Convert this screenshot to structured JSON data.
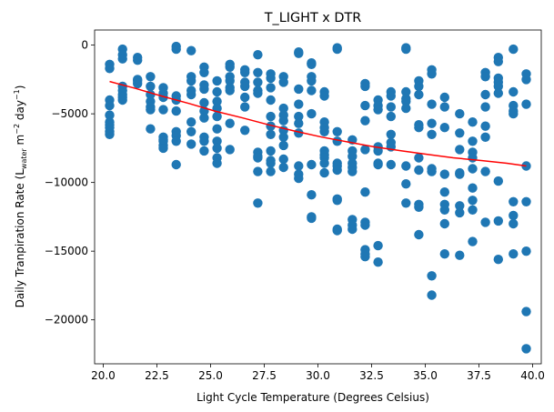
{
  "chart_data": {
    "type": "scatter",
    "title": "T_LIGHT x DTR",
    "xlabel": "Light Cycle Temperature (Degrees Celsius)",
    "ylabel_parts": [
      "Daily Tranpiration Rate (L",
      "water",
      " m",
      "−2",
      " day",
      "−1",
      ")"
    ],
    "xlim": [
      19.6,
      40.4
    ],
    "ylim": [
      -23200,
      1100
    ],
    "xticks": [
      20.0,
      22.5,
      25.0,
      27.5,
      30.0,
      32.5,
      35.0,
      37.5,
      40.0
    ],
    "xtick_labels": [
      "20.0",
      "22.5",
      "25.0",
      "27.5",
      "30.0",
      "32.5",
      "35.0",
      "37.5",
      "40.0"
    ],
    "yticks": [
      0,
      -5000,
      -10000,
      -15000,
      -20000
    ],
    "ytick_labels": [
      "0",
      "−5000",
      "−10000",
      "−15000",
      "−20000"
    ],
    "grid": false,
    "colors": {
      "points": "#1f77b4",
      "trend": "#ff0000"
    },
    "series": [
      {
        "kind": "scatter",
        "x": [
          20.3,
          20.3,
          20.3,
          20.3,
          20.3,
          20.3,
          20.3,
          20.3,
          20.3,
          20.3,
          20.9,
          20.9,
          20.9,
          20.9,
          20.9,
          20.9,
          20.9,
          20.9,
          21.6,
          21.6,
          21.6,
          21.6,
          21.6,
          22.2,
          22.2,
          22.2,
          22.2,
          22.2,
          22.2,
          22.2,
          22.8,
          22.8,
          22.8,
          22.8,
          22.8,
          22.8,
          22.8,
          22.8,
          22.8,
          23.4,
          23.4,
          23.4,
          23.4,
          23.4,
          23.4,
          23.4,
          23.4,
          23.4,
          24.1,
          24.1,
          24.1,
          24.1,
          24.1,
          24.1,
          24.1,
          24.1,
          24.7,
          24.7,
          24.7,
          24.7,
          24.7,
          24.7,
          24.7,
          24.7,
          24.7,
          24.7,
          25.3,
          25.3,
          25.3,
          25.3,
          25.3,
          25.3,
          25.3,
          25.3,
          25.3,
          25.3,
          25.9,
          25.9,
          25.9,
          25.9,
          25.9,
          25.9,
          25.9,
          25.9,
          26.6,
          26.6,
          26.6,
          26.6,
          26.6,
          26.6,
          26.6,
          27.2,
          27.2,
          27.2,
          27.2,
          27.2,
          27.2,
          27.2,
          27.2,
          27.2,
          27.2,
          27.8,
          27.8,
          27.8,
          27.8,
          27.8,
          27.8,
          27.8,
          27.8,
          27.8,
          27.8,
          27.8,
          28.4,
          28.4,
          28.4,
          28.4,
          28.4,
          28.4,
          28.4,
          28.4,
          28.4,
          28.4,
          29.1,
          29.1,
          29.1,
          29.1,
          29.1,
          29.1,
          29.1,
          29.1,
          29.1,
          29.1,
          29.7,
          29.7,
          29.7,
          29.7,
          29.7,
          29.7,
          29.7,
          29.7,
          29.7,
          29.7,
          30.3,
          30.3,
          30.3,
          30.3,
          30.3,
          30.3,
          30.3,
          30.3,
          30.3,
          30.3,
          30.9,
          30.9,
          30.9,
          30.9,
          30.9,
          30.9,
          30.9,
          30.9,
          30.9,
          30.9,
          30.9,
          31.6,
          31.6,
          31.6,
          31.6,
          31.6,
          31.6,
          31.6,
          31.6,
          31.6,
          32.2,
          32.2,
          32.2,
          32.2,
          32.2,
          32.2,
          32.2,
          32.2,
          32.2,
          32.2,
          32.2,
          32.8,
          32.8,
          32.8,
          32.8,
          32.8,
          32.8,
          32.8,
          32.8,
          32.8,
          33.4,
          33.4,
          33.4,
          33.4,
          33.4,
          33.4,
          33.4,
          33.4,
          34.1,
          34.1,
          34.1,
          34.1,
          34.1,
          34.1,
          34.1,
          34.1,
          34.1,
          34.7,
          34.7,
          34.7,
          34.7,
          34.7,
          34.7,
          34.7,
          34.7,
          34.7,
          34.7,
          35.3,
          35.3,
          35.3,
          35.3,
          35.3,
          35.3,
          35.3,
          35.3,
          35.3,
          35.9,
          35.9,
          35.9,
          35.9,
          35.9,
          35.9,
          35.9,
          35.9,
          35.9,
          36.6,
          36.6,
          36.6,
          36.6,
          36.6,
          36.6,
          36.6,
          36.6,
          37.2,
          37.2,
          37.2,
          37.2,
          37.2,
          37.2,
          37.2,
          37.2,
          37.2,
          37.8,
          37.8,
          37.8,
          37.8,
          37.8,
          37.8,
          37.8,
          37.8,
          38.4,
          38.4,
          38.4,
          38.4,
          38.4,
          38.4,
          38.4,
          38.4,
          38.4,
          39.1,
          39.1,
          39.1,
          39.1,
          39.1,
          39.1,
          39.1,
          39.1,
          39.1,
          39.7,
          39.7,
          39.7,
          39.7,
          39.7,
          39.7,
          39.7,
          39.7
        ],
        "y": [
          -1400,
          -1700,
          -4000,
          -4400,
          -5100,
          -5600,
          -5800,
          -6300,
          -6500,
          -6000,
          -300,
          -700,
          -1000,
          -3300,
          -3600,
          -4000,
          -3000,
          -3800,
          -900,
          -1100,
          -2600,
          -2800,
          -2500,
          -2300,
          -3000,
          -4100,
          -4500,
          -4700,
          -6100,
          -3600,
          -3100,
          -3500,
          -3800,
          -6700,
          -7000,
          -7300,
          -7500,
          -6900,
          -4700,
          -100,
          -300,
          -3700,
          -4000,
          -4800,
          -6300,
          -6600,
          -8700,
          -7000,
          -400,
          -2300,
          -2600,
          -3300,
          -3600,
          -5600,
          -6300,
          -7200,
          -1600,
          -2000,
          -2900,
          -3200,
          -4800,
          -5300,
          -6700,
          -7000,
          -7700,
          -4200,
          -2600,
          -3400,
          -4100,
          -4600,
          -5200,
          -6100,
          -7000,
          -7500,
          -8200,
          -8600,
          -1400,
          -1600,
          -2300,
          -2600,
          -3100,
          -3300,
          -5700,
          -7600,
          -1800,
          -2000,
          -2700,
          -3000,
          -3800,
          -4500,
          -6200,
          -700,
          -2000,
          -2700,
          -3300,
          -3500,
          -7800,
          -8100,
          -8200,
          -9200,
          -11500,
          -2100,
          -2400,
          -3100,
          -4000,
          -5200,
          -5900,
          -6500,
          -7700,
          -8400,
          -8600,
          -9200,
          -2300,
          -2700,
          -4600,
          -5100,
          -5500,
          -6200,
          -6700,
          -7300,
          -8300,
          -8900,
          -600,
          -500,
          -3200,
          -4300,
          -5200,
          -5700,
          -6400,
          -8800,
          -9400,
          -9700,
          -1300,
          -1400,
          -2300,
          -2600,
          -3300,
          -5000,
          -8700,
          -10900,
          -12500,
          -12600,
          -3400,
          -3700,
          -5600,
          -6000,
          -6300,
          -7700,
          -8000,
          -8200,
          -8600,
          -9300,
          -200,
          -300,
          -6300,
          -7000,
          -8600,
          -8800,
          -9100,
          -11200,
          -11300,
          -13400,
          -13500,
          -6900,
          -7700,
          -8100,
          -8600,
          -8900,
          -9200,
          -12700,
          -13100,
          -13400,
          -2800,
          -3000,
          -4400,
          -5500,
          -7600,
          -10700,
          -12900,
          -13100,
          -14900,
          -15200,
          -15400,
          -4000,
          -4400,
          -4700,
          -7400,
          -7700,
          -8600,
          -8700,
          -14600,
          -15800,
          -3400,
          -3700,
          -4500,
          -5200,
          -6500,
          -7100,
          -7400,
          -8700,
          -200,
          -300,
          -3400,
          -3900,
          -4100,
          -4600,
          -8800,
          -10100,
          -11500,
          -2600,
          -3000,
          -3600,
          -5800,
          -6000,
          -8200,
          -9100,
          -11600,
          -11800,
          -13800,
          -1800,
          -2100,
          -4300,
          -5700,
          -6500,
          -9000,
          -9200,
          -16800,
          -18200,
          -3800,
          -4500,
          -6000,
          -9400,
          -10700,
          -11600,
          -12000,
          -13000,
          -15200,
          -5000,
          -6400,
          -7600,
          -9300,
          -9400,
          -11700,
          -12200,
          -15300,
          -5600,
          -7000,
          -7800,
          -8200,
          -9000,
          -10400,
          -11300,
          -12000,
          -14300,
          -2000,
          -2300,
          -3600,
          -4500,
          -5900,
          -6700,
          -9200,
          -12900,
          -900,
          -1200,
          -2400,
          -2700,
          -3000,
          -3500,
          -9900,
          -12800,
          -15600,
          -300,
          -3400,
          -4400,
          -4800,
          -5000,
          -11400,
          -12400,
          -13000,
          -15200,
          -2100,
          -2500,
          -4300,
          -8800,
          -11400,
          -15000,
          -19400,
          -22100
        ]
      },
      {
        "kind": "line",
        "x": [
          20.3,
          21.5,
          22.7,
          24.0,
          25.2,
          26.5,
          27.7,
          28.9,
          30.2,
          31.4,
          32.6,
          33.9,
          35.1,
          36.3,
          37.6,
          38.8,
          39.7
        ],
        "y": [
          -2650,
          -3150,
          -3700,
          -4250,
          -4800,
          -5300,
          -5800,
          -6250,
          -6700,
          -7050,
          -7400,
          -7700,
          -7950,
          -8200,
          -8400,
          -8600,
          -8800
        ]
      }
    ]
  }
}
